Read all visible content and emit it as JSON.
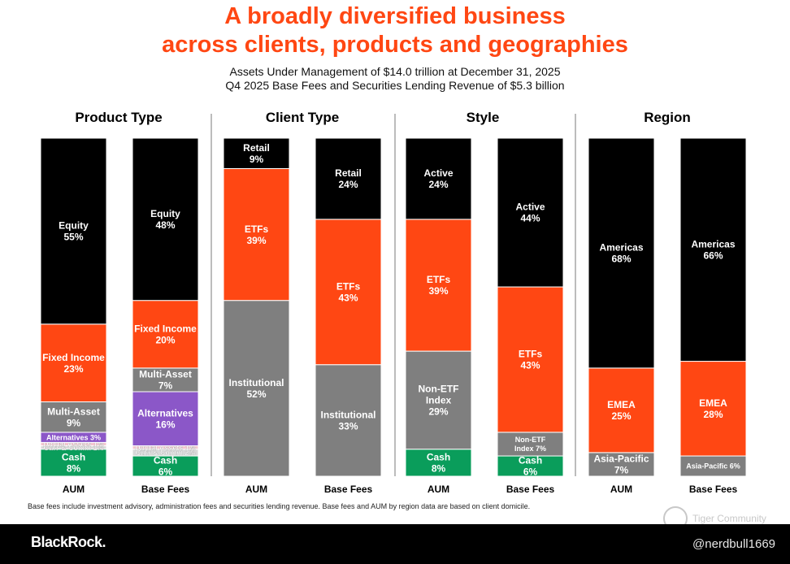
{
  "title_line1": "A broadly diversified business",
  "title_line2": "across clients, products and geographies",
  "subtitle_line1": "Assets Under Management of $14.0 trillion at December 31, 2025",
  "subtitle_line2": "Q4 2025 Base Fees and Securities Lending Revenue of $5.3 billion",
  "footnote": "Base fees include investment advisory, administration fees and securities lending revenue. Base fees and AUM by region data are based on client domicile.",
  "brand": "BlackRock.",
  "watermark": "Tiger Community",
  "user_handle": "@nerdbull1669",
  "colors": {
    "title": "#FF4713",
    "black": "#000000",
    "orange": "#FF4713",
    "gray": "#7F7F7F",
    "purple": "#8B57C8",
    "pink": "#F4C7D0",
    "lightgray": "#D9D9D9",
    "green": "#0A9D5B",
    "divider": "#A6A6A6"
  },
  "chart_data": {
    "type": "stacked-bar",
    "unit": "%",
    "panels": [
      {
        "title": "Product Type",
        "bars": [
          {
            "label": "AUM",
            "segments": [
              {
                "name": "Cash",
                "value": 8,
                "label_lines": [
                  "Cash",
                  "8%"
                ],
                "color": "green"
              },
              {
                "name": "Curr & Comm",
                "value": 1,
                "label_lines": [
                  "Curr & Comm 1%"
                ],
                "color": "lightgray",
                "small": true
              },
              {
                "name": "Digital Assets",
                "value": 1,
                "label_lines": [
                  "Digital Assets 1%"
                ],
                "color": "pink",
                "small": true
              },
              {
                "name": "Alternatives",
                "value": 3,
                "label_lines": [
                  "Alternatives 3%"
                ],
                "color": "purple",
                "small": true
              },
              {
                "name": "Multi-Asset",
                "value": 9,
                "label_lines": [
                  "Multi-Asset",
                  "9%"
                ],
                "color": "gray"
              },
              {
                "name": "Fixed Income",
                "value": 23,
                "label_lines": [
                  "Fixed Income",
                  "23%"
                ],
                "color": "orange"
              },
              {
                "name": "Equity",
                "value": 55,
                "label_lines": [
                  "Equity",
                  "55%"
                ],
                "color": "black"
              }
            ]
          },
          {
            "label": "Base Fees",
            "segments": [
              {
                "name": "Cash",
                "value": 6,
                "label_lines": [
                  "Cash",
                  "6%"
                ],
                "color": "green"
              },
              {
                "name": "Curr & Comm",
                "value": 2,
                "label_lines": [
                  "Curr & Comm 2%"
                ],
                "color": "lightgray",
                "small": true
              },
              {
                "name": "Digital Assets",
                "value": 1,
                "label_lines": [
                  "Digital Assets 1%"
                ],
                "color": "pink",
                "small": true
              },
              {
                "name": "Alternatives",
                "value": 16,
                "label_lines": [
                  "Alternatives",
                  "16%"
                ],
                "color": "purple"
              },
              {
                "name": "Multi-Asset",
                "value": 7,
                "label_lines": [
                  "Multi-Asset",
                  "7%"
                ],
                "color": "gray"
              },
              {
                "name": "Fixed Income",
                "value": 20,
                "label_lines": [
                  "Fixed Income",
                  "20%"
                ],
                "color": "orange"
              },
              {
                "name": "Equity",
                "value": 48,
                "label_lines": [
                  "Equity",
                  "48%"
                ],
                "color": "black"
              }
            ]
          }
        ]
      },
      {
        "title": "Client Type",
        "bars": [
          {
            "label": "AUM",
            "segments": [
              {
                "name": "Institutional",
                "value": 52,
                "label_lines": [
                  "Institutional",
                  "52%"
                ],
                "color": "gray"
              },
              {
                "name": "ETFs",
                "value": 39,
                "label_lines": [
                  "ETFs",
                  "39%"
                ],
                "color": "orange"
              },
              {
                "name": "Retail",
                "value": 9,
                "label_lines": [
                  "Retail",
                  "9%"
                ],
                "color": "black"
              }
            ]
          },
          {
            "label": "Base Fees",
            "segments": [
              {
                "name": "Institutional",
                "value": 33,
                "label_lines": [
                  "Institutional",
                  "33%"
                ],
                "color": "gray"
              },
              {
                "name": "ETFs",
                "value": 43,
                "label_lines": [
                  "ETFs",
                  "43%"
                ],
                "color": "orange"
              },
              {
                "name": "Retail",
                "value": 24,
                "label_lines": [
                  "Retail",
                  "24%"
                ],
                "color": "black"
              }
            ]
          }
        ]
      },
      {
        "title": "Style",
        "bars": [
          {
            "label": "AUM",
            "segments": [
              {
                "name": "Cash",
                "value": 8,
                "label_lines": [
                  "Cash",
                  "8%"
                ],
                "color": "green"
              },
              {
                "name": "Non-ETF Index",
                "value": 29,
                "label_lines": [
                  "Non-ETF",
                  "Index",
                  "29%"
                ],
                "color": "gray"
              },
              {
                "name": "ETFs",
                "value": 39,
                "label_lines": [
                  "ETFs",
                  "39%"
                ],
                "color": "orange"
              },
              {
                "name": "Active",
                "value": 24,
                "label_lines": [
                  "Active",
                  "24%"
                ],
                "color": "black"
              }
            ]
          },
          {
            "label": "Base Fees",
            "segments": [
              {
                "name": "Cash",
                "value": 6,
                "label_lines": [
                  "Cash",
                  "6%"
                ],
                "color": "green"
              },
              {
                "name": "Non-ETF Index",
                "value": 7,
                "label_lines": [
                  "Non-ETF",
                  "Index 7%"
                ],
                "color": "gray",
                "small": true
              },
              {
                "name": "ETFs",
                "value": 43,
                "label_lines": [
                  "ETFs",
                  "43%"
                ],
                "color": "orange"
              },
              {
                "name": "Active",
                "value": 44,
                "label_lines": [
                  "Active",
                  "44%"
                ],
                "color": "black"
              }
            ]
          }
        ]
      },
      {
        "title": "Region",
        "bars": [
          {
            "label": "AUM",
            "segments": [
              {
                "name": "Asia-Pacific",
                "value": 7,
                "label_lines": [
                  "Asia-Pacific",
                  "7%"
                ],
                "color": "gray"
              },
              {
                "name": "EMEA",
                "value": 25,
                "label_lines": [
                  "EMEA",
                  "25%"
                ],
                "color": "orange"
              },
              {
                "name": "Americas",
                "value": 68,
                "label_lines": [
                  "Americas",
                  "68%"
                ],
                "color": "black"
              }
            ]
          },
          {
            "label": "Base Fees",
            "segments": [
              {
                "name": "Asia-Pacific",
                "value": 6,
                "label_lines": [
                  "Asia-Pacific 6%"
                ],
                "color": "gray",
                "small": true
              },
              {
                "name": "EMEA",
                "value": 28,
                "label_lines": [
                  "EMEA",
                  "28%"
                ],
                "color": "orange"
              },
              {
                "name": "Americas",
                "value": 66,
                "label_lines": [
                  "Americas",
                  "66%"
                ],
                "color": "black"
              }
            ]
          }
        ]
      }
    ]
  }
}
